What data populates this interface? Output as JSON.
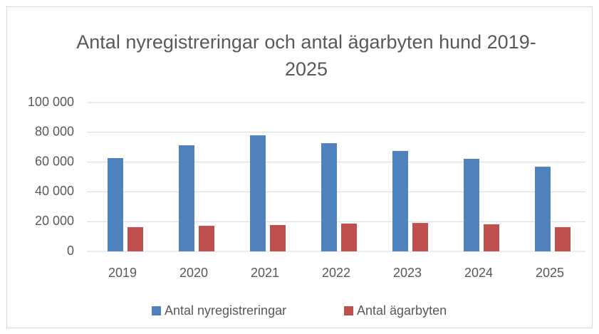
{
  "chart_data": {
    "type": "bar",
    "title": "Antal nyregistreringar och antal ägarbyten hund 2019-2025",
    "categories": [
      "2019",
      "2020",
      "2021",
      "2022",
      "2023",
      "2024",
      "2025"
    ],
    "series": [
      {
        "name": "Antal nyregistreringar",
        "color": "#4f81bd",
        "values": [
          62700,
          71300,
          78000,
          72700,
          67500,
          62200,
          56900
        ]
      },
      {
        "name": "Antal ägarbyten",
        "color": "#c0504d",
        "values": [
          16300,
          17200,
          17700,
          18700,
          19100,
          18200,
          16300
        ]
      }
    ],
    "ylim": [
      0,
      100000
    ],
    "yticks": [
      0,
      {
        "value": 20000,
        "label": "20 000"
      },
      {
        "value": 40000,
        "label": "40 000"
      },
      {
        "value": 60000,
        "label": "60 000"
      },
      {
        "value": 80000,
        "label": "80 000"
      },
      {
        "value": 100000,
        "label": "100 000"
      }
    ],
    "grid": true,
    "legend": "bottom"
  }
}
